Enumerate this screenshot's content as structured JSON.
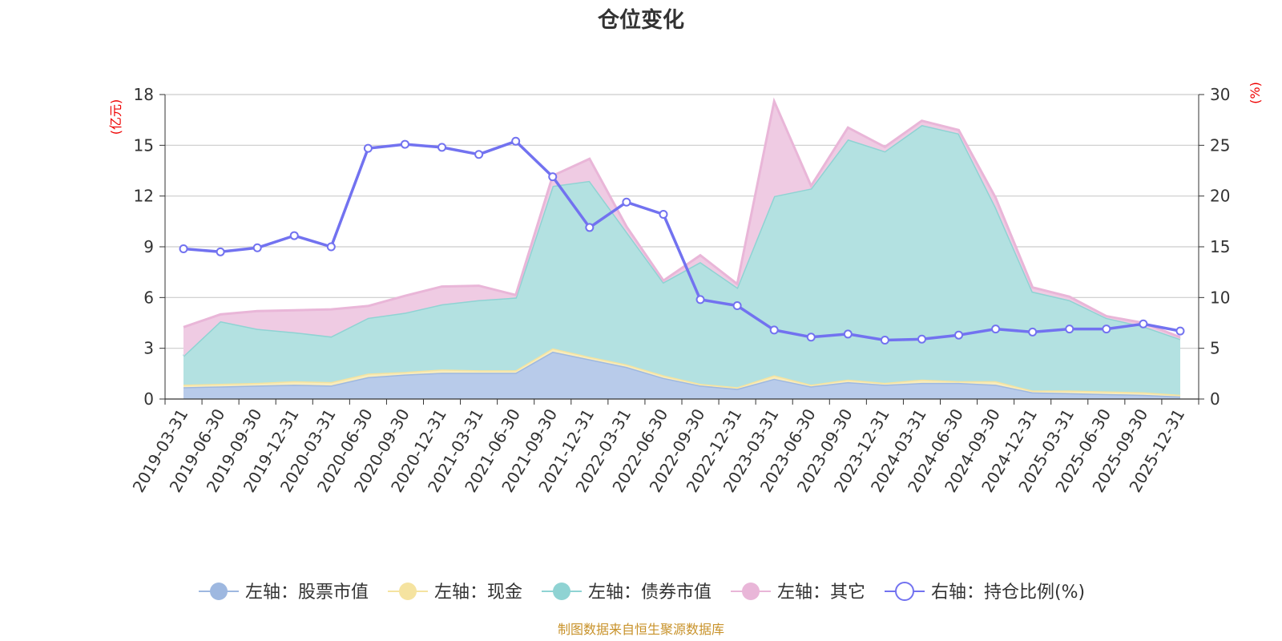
{
  "chart_data": {
    "type": "area",
    "title": "仓位变化",
    "left_axis_unit": "(亿元)",
    "right_axis_unit": "(%)",
    "left_ylim": [
      0,
      18
    ],
    "left_ticks": [
      0,
      3,
      6,
      9,
      12,
      15,
      18
    ],
    "right_ylim": [
      0,
      30
    ],
    "right_ticks": [
      0,
      5,
      10,
      15,
      20,
      25,
      30
    ],
    "categories": [
      "2019-03-31",
      "2019-06-30",
      "2019-09-30",
      "2019-12-31",
      "2020-03-31",
      "2020-06-30",
      "2020-09-30",
      "2020-12-31",
      "2021-03-31",
      "2021-06-30",
      "2021-09-30",
      "2021-12-31",
      "2022-03-31",
      "2022-06-30",
      "2022-09-30",
      "2022-12-31",
      "2023-03-31",
      "2023-06-30",
      "2023-09-30",
      "2023-12-31",
      "2024-03-31",
      "2024-06-30",
      "2024-09-30",
      "2024-12-31",
      "2025-03-31",
      "2025-06-30",
      "2025-09-30",
      "2025-12-31"
    ],
    "stacked_series": [
      {
        "name": "左轴：股票市值",
        "color": "#9eb8e0",
        "fill": "#b8cbea",
        "values": [
          0.7,
          0.75,
          0.8,
          0.85,
          0.8,
          1.3,
          1.45,
          1.55,
          1.55,
          1.55,
          2.8,
          2.35,
          1.9,
          1.25,
          0.8,
          0.6,
          1.2,
          0.75,
          1.0,
          0.85,
          0.95,
          0.95,
          0.85,
          0.4,
          0.35,
          0.3,
          0.25,
          0.15
        ]
      },
      {
        "name": "左轴：现金",
        "color": "#f5e3a0",
        "fill": "#f8ecbc",
        "values": [
          0.15,
          0.15,
          0.15,
          0.2,
          0.2,
          0.2,
          0.15,
          0.2,
          0.15,
          0.15,
          0.2,
          0.15,
          0.15,
          0.15,
          0.1,
          0.1,
          0.2,
          0.1,
          0.15,
          0.1,
          0.2,
          0.1,
          0.2,
          0.1,
          0.15,
          0.15,
          0.15,
          0.1
        ]
      },
      {
        "name": "左轴：债券市值",
        "color": "#8fd3d3",
        "fill": "#b3e1e1",
        "values": [
          1.7,
          3.7,
          3.2,
          2.9,
          2.7,
          3.3,
          3.5,
          3.85,
          4.15,
          4.3,
          9.6,
          10.4,
          7.85,
          5.5,
          7.2,
          5.9,
          10.6,
          11.6,
          14.2,
          13.7,
          15.05,
          14.65,
          10.3,
          5.85,
          5.35,
          4.35,
          3.9,
          3.3
        ]
      },
      {
        "name": "左轴：其它",
        "color": "#e9b6d8",
        "fill": "#efcbe3",
        "values": [
          1.7,
          0.4,
          1.05,
          1.3,
          1.6,
          0.7,
          1.0,
          1.05,
          0.85,
          0.15,
          0.6,
          1.3,
          0.3,
          0.1,
          0.4,
          0.2,
          5.6,
          0.15,
          0.7,
          0.25,
          0.25,
          0.2,
          0.55,
          0.25,
          0.2,
          0.1,
          0.2,
          0.1
        ]
      }
    ],
    "line_series": {
      "name": "右轴：持仓比例(%)",
      "color": "#7272f0",
      "axis": "right",
      "values": [
        14.8,
        14.5,
        14.9,
        16.1,
        15.0,
        24.7,
        25.1,
        24.8,
        24.1,
        25.4,
        21.9,
        16.9,
        19.4,
        18.2,
        9.8,
        9.2,
        6.8,
        6.1,
        6.4,
        5.8,
        5.9,
        6.3,
        6.9,
        6.6,
        6.9,
        6.9,
        7.4,
        6.7
      ]
    },
    "source": "制图数据来自恒生聚源数据库"
  }
}
